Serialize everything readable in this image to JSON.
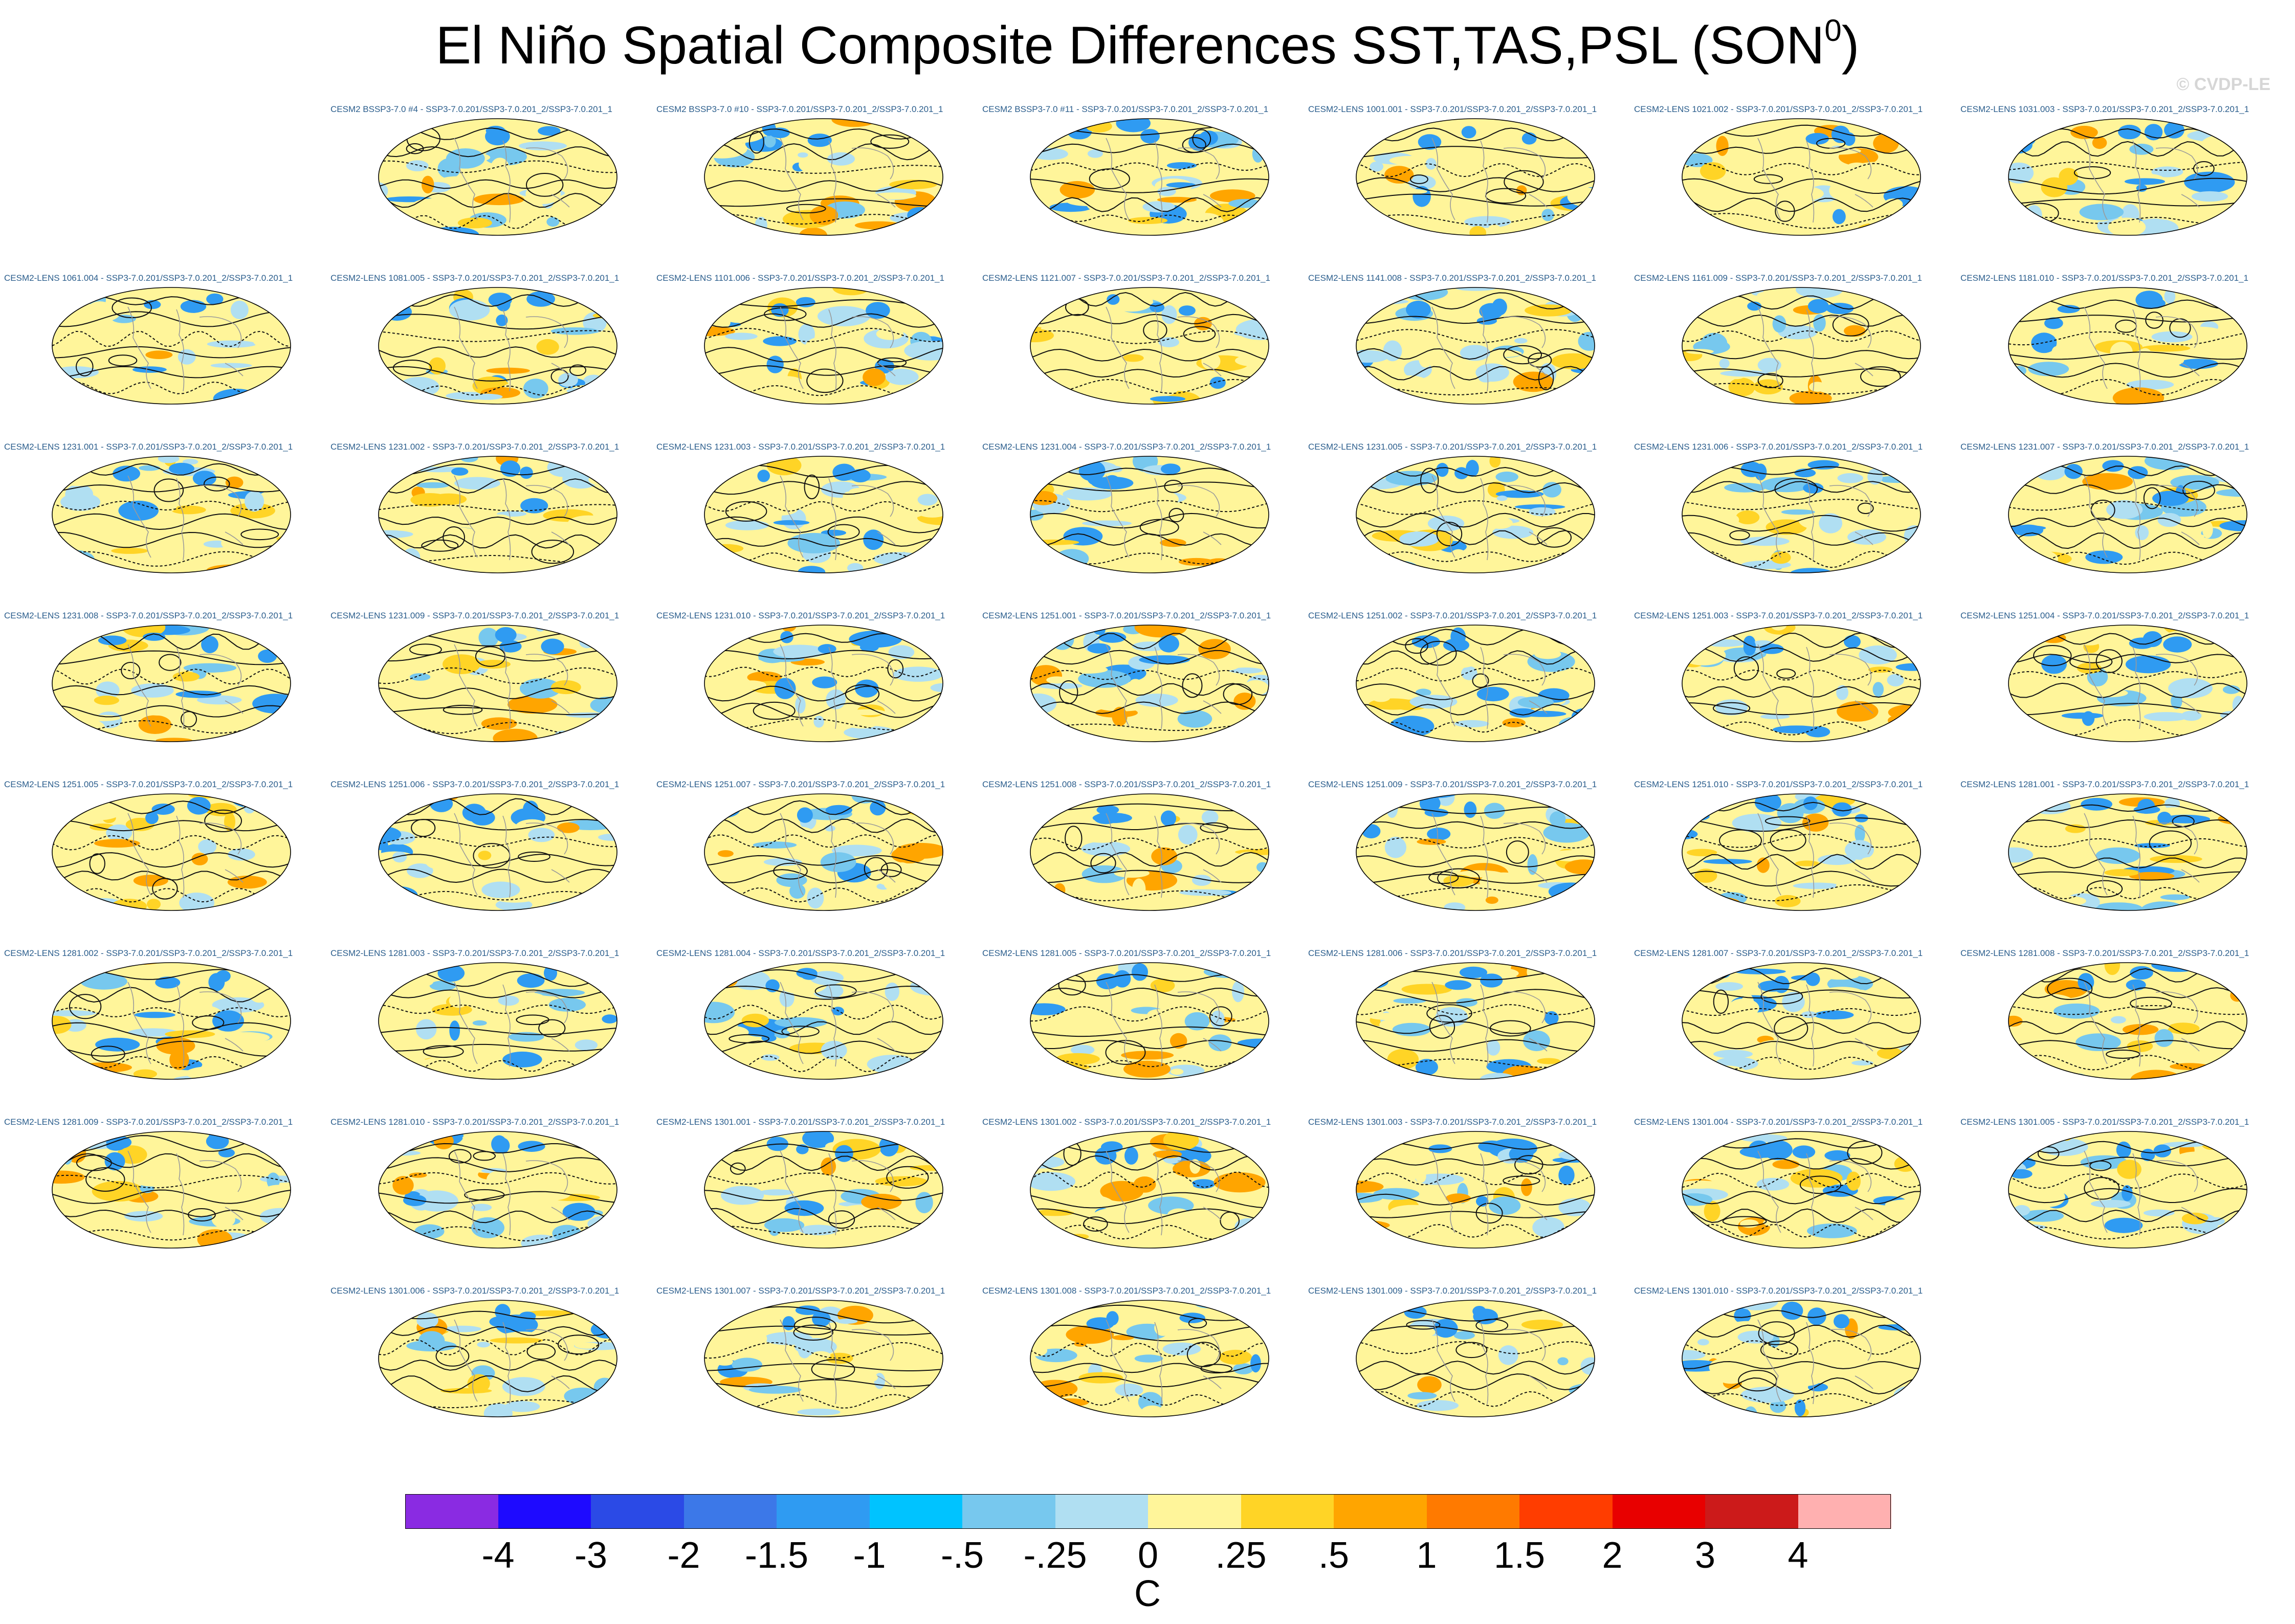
{
  "title": "El Niño Spatial Composite Differences SST,TAS,PSL (SON",
  "title_superscript": "0",
  "title_suffix": ")",
  "watermark": "© CVDP-LE",
  "chart_data": {
    "type": "heatmap",
    "description_variable": "SST,TAS,PSL composite difference, SON0",
    "projection": "global Robinson-like ellipse",
    "panels": [
      {
        "label": "CESM2 BSSP3-7.0 #4 - SSP3-7.0.201/SSP3-7.0.201_2/SSP3-7.0.201_1"
      },
      {
        "label": "CESM2 BSSP3-7.0 #10 - SSP3-7.0.201/SSP3-7.0.201_2/SSP3-7.0.201_1"
      },
      {
        "label": "CESM2 BSSP3-7.0 #11 - SSP3-7.0.201/SSP3-7.0.201_2/SSP3-7.0.201_1"
      },
      {
        "label": "CESM2-LENS 1001.001 - SSP3-7.0.201/SSP3-7.0.201_2/SSP3-7.0.201_1"
      },
      {
        "label": "CESM2-LENS 1021.002 - SSP3-7.0.201/SSP3-7.0.201_2/SSP3-7.0.201_1"
      },
      {
        "label": "CESM2-LENS 1031.003 - SSP3-7.0.201/SSP3-7.0.201_2/SSP3-7.0.201_1"
      },
      {
        "label": "CESM2-LENS 1061.004 - SSP3-7.0.201/SSP3-7.0.201_2/SSP3-7.0.201_1"
      },
      {
        "label": "CESM2-LENS 1081.005 - SSP3-7.0.201/SSP3-7.0.201_2/SSP3-7.0.201_1"
      },
      {
        "label": "CESM2-LENS 1101.006 - SSP3-7.0.201/SSP3-7.0.201_2/SSP3-7.0.201_1"
      },
      {
        "label": "CESM2-LENS 1121.007 - SSP3-7.0.201/SSP3-7.0.201_2/SSP3-7.0.201_1"
      },
      {
        "label": "CESM2-LENS 1141.008 - SSP3-7.0.201/SSP3-7.0.201_2/SSP3-7.0.201_1"
      },
      {
        "label": "CESM2-LENS 1161.009 - SSP3-7.0.201/SSP3-7.0.201_2/SSP3-7.0.201_1"
      },
      {
        "label": "CESM2-LENS 1181.010 - SSP3-7.0.201/SSP3-7.0.201_2/SSP3-7.0.201_1"
      },
      {
        "label": "CESM2-LENS 1231.001 - SSP3-7.0.201/SSP3-7.0.201_2/SSP3-7.0.201_1"
      },
      {
        "label": "CESM2-LENS 1231.002 - SSP3-7.0.201/SSP3-7.0.201_2/SSP3-7.0.201_1"
      },
      {
        "label": "CESM2-LENS 1231.003 - SSP3-7.0.201/SSP3-7.0.201_2/SSP3-7.0.201_1"
      },
      {
        "label": "CESM2-LENS 1231.004 - SSP3-7.0.201/SSP3-7.0.201_2/SSP3-7.0.201_1"
      },
      {
        "label": "CESM2-LENS 1231.005 - SSP3-7.0.201/SSP3-7.0.201_2/SSP3-7.0.201_1"
      },
      {
        "label": "CESM2-LENS 1231.006 - SSP3-7.0.201/SSP3-7.0.201_2/SSP3-7.0.201_1"
      },
      {
        "label": "CESM2-LENS 1231.007 - SSP3-7.0.201/SSP3-7.0.201_2/SSP3-7.0.201_1"
      },
      {
        "label": "CESM2-LENS 1231.008 - SSP3-7.0.201/SSP3-7.0.201_2/SSP3-7.0.201_1"
      },
      {
        "label": "CESM2-LENS 1231.009 - SSP3-7.0.201/SSP3-7.0.201_2/SSP3-7.0.201_1"
      },
      {
        "label": "CESM2-LENS 1231.010 - SSP3-7.0.201/SSP3-7.0.201_2/SSP3-7.0.201_1"
      },
      {
        "label": "CESM2-LENS 1251.001 - SSP3-7.0.201/SSP3-7.0.201_2/SSP3-7.0.201_1"
      },
      {
        "label": "CESM2-LENS 1251.002 - SSP3-7.0.201/SSP3-7.0.201_2/SSP3-7.0.201_1"
      },
      {
        "label": "CESM2-LENS 1251.003 - SSP3-7.0.201/SSP3-7.0.201_2/SSP3-7.0.201_1"
      },
      {
        "label": "CESM2-LENS 1251.004 - SSP3-7.0.201/SSP3-7.0.201_2/SSP3-7.0.201_1"
      },
      {
        "label": "CESM2-LENS 1251.005 - SSP3-7.0.201/SSP3-7.0.201_2/SSP3-7.0.201_1"
      },
      {
        "label": "CESM2-LENS 1251.006 - SSP3-7.0.201/SSP3-7.0.201_2/SSP3-7.0.201_1"
      },
      {
        "label": "CESM2-LENS 1251.007 - SSP3-7.0.201/SSP3-7.0.201_2/SSP3-7.0.201_1"
      },
      {
        "label": "CESM2-LENS 1251.008 - SSP3-7.0.201/SSP3-7.0.201_2/SSP3-7.0.201_1"
      },
      {
        "label": "CESM2-LENS 1251.009 - SSP3-7.0.201/SSP3-7.0.201_2/SSP3-7.0.201_1"
      },
      {
        "label": "CESM2-LENS 1251.010 - SSP3-7.0.201/SSP3-7.0.201_2/SSP3-7.0.201_1"
      },
      {
        "label": "CESM2-LENS 1281.001 - SSP3-7.0.201/SSP3-7.0.201_2/SSP3-7.0.201_1"
      },
      {
        "label": "CESM2-LENS 1281.002 - SSP3-7.0.201/SSP3-7.0.201_2/SSP3-7.0.201_1"
      },
      {
        "label": "CESM2-LENS 1281.003 - SSP3-7.0.201/SSP3-7.0.201_2/SSP3-7.0.201_1"
      },
      {
        "label": "CESM2-LENS 1281.004 - SSP3-7.0.201/SSP3-7.0.201_2/SSP3-7.0.201_1"
      },
      {
        "label": "CESM2-LENS 1281.005 - SSP3-7.0.201/SSP3-7.0.201_2/SSP3-7.0.201_1"
      },
      {
        "label": "CESM2-LENS 1281.006 - SSP3-7.0.201/SSP3-7.0.201_2/SSP3-7.0.201_1"
      },
      {
        "label": "CESM2-LENS 1281.007 - SSP3-7.0.201/SSP3-7.0.201_2/SSP3-7.0.201_1"
      },
      {
        "label": "CESM2-LENS 1281.008 - SSP3-7.0.201/SSP3-7.0.201_2/SSP3-7.0.201_1"
      },
      {
        "label": "CESM2-LENS 1281.009 - SSP3-7.0.201/SSP3-7.0.201_2/SSP3-7.0.201_1"
      },
      {
        "label": "CESM2-LENS 1281.010 - SSP3-7.0.201/SSP3-7.0.201_2/SSP3-7.0.201_1"
      },
      {
        "label": "CESM2-LENS 1301.001 - SSP3-7.0.201/SSP3-7.0.201_2/SSP3-7.0.201_1"
      },
      {
        "label": "CESM2-LENS 1301.002 - SSP3-7.0.201/SSP3-7.0.201_2/SSP3-7.0.201_1"
      },
      {
        "label": "CESM2-LENS 1301.003 - SSP3-7.0.201/SSP3-7.0.201_2/SSP3-7.0.201_1"
      },
      {
        "label": "CESM2-LENS 1301.004 - SSP3-7.0.201/SSP3-7.0.201_2/SSP3-7.0.201_1"
      },
      {
        "label": "CESM2-LENS 1301.005 - SSP3-7.0.201/SSP3-7.0.201_2/SSP3-7.0.201_1"
      },
      {
        "label": "CESM2-LENS 1301.006 - SSP3-7.0.201/SSP3-7.0.201_2/SSP3-7.0.201_1"
      },
      {
        "label": "CESM2-LENS 1301.007 - SSP3-7.0.201/SSP3-7.0.201_2/SSP3-7.0.201_1"
      },
      {
        "label": "CESM2-LENS 1301.008 - SSP3-7.0.201/SSP3-7.0.201_2/SSP3-7.0.201_1"
      },
      {
        "label": "CESM2-LENS 1301.009 - SSP3-7.0.201/SSP3-7.0.201_2/SSP3-7.0.201_1"
      },
      {
        "label": "CESM2-LENS 1301.010 - SSP3-7.0.201/SSP3-7.0.201_2/SSP3-7.0.201_1"
      }
    ],
    "colorbar": {
      "unit": "C",
      "tick_labels": [
        "-4",
        "-3",
        "-2",
        "-1.5",
        "-1",
        "-.5",
        "-.25",
        "0",
        ".25",
        ".5",
        "1",
        "1.5",
        "2",
        "3",
        "4"
      ],
      "colors": [
        "#8a2be2",
        "#1e0aff",
        "#2b4ae6",
        "#3c78e8",
        "#2f9bf2",
        "#00c3ff",
        "#77c8ee",
        "#b0dff2",
        "#fff59a",
        "#ffd426",
        "#ffa500",
        "#ff7a00",
        "#ff3d00",
        "#e80000",
        "#cc1a1a",
        "#ffb0b0"
      ]
    }
  }
}
